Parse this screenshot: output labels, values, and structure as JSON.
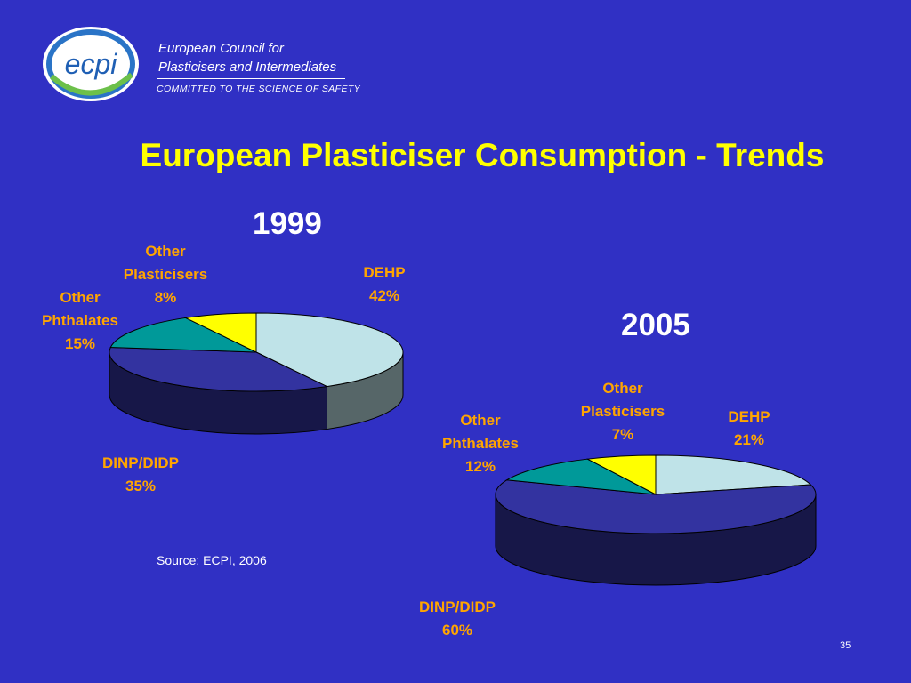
{
  "header": {
    "logo_text": "ecpi",
    "org_line1": "European Council for",
    "org_line2": "Plasticisers and Intermediates",
    "tagline": "COMMITTED TO THE SCIENCE OF SAFETY"
  },
  "colors": {
    "background": "#3030c4",
    "title": "#ffff00",
    "labels": "#ffa500",
    "DEHP": "#bfe3e8",
    "DINP/DIDP": "#3333a0",
    "Other Phthalates": "#009999",
    "Other Plasticisers": "#ffff00"
  },
  "title": "European Plasticiser Consumption - Trends",
  "chart_data": [
    {
      "type": "pie",
      "title": "1999",
      "categories": [
        "DEHP",
        "DINP/DIDP",
        "Other Phthalates",
        "Other Plasticisers"
      ],
      "labels": [
        [
          "DEHP"
        ],
        [
          "DINP/DIDP"
        ],
        [
          "Other",
          "Phthalates"
        ],
        [
          "Other",
          "Plasticisers"
        ]
      ],
      "values": [
        42,
        35,
        15,
        8
      ],
      "value_labels": [
        "42%",
        "35%",
        "15%",
        "8%"
      ],
      "style": "3d"
    },
    {
      "type": "pie",
      "title": "2005",
      "categories": [
        "DEHP",
        "DINP/DIDP",
        "Other Phthalates",
        "Other Plasticisers"
      ],
      "labels": [
        [
          "DEHP"
        ],
        [
          "DINP/DIDP"
        ],
        [
          "Other",
          "Phthalates"
        ],
        [
          "Other",
          "Plasticisers"
        ]
      ],
      "values": [
        21,
        60,
        12,
        7
      ],
      "value_labels": [
        "21%",
        "60%",
        "12%",
        "7%"
      ],
      "style": "3d"
    }
  ],
  "source": "Source: ECPI, 2006",
  "page_number": "35"
}
